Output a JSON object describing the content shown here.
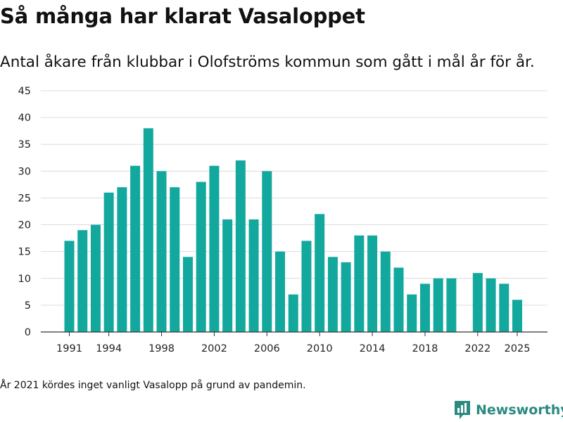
{
  "title": "Så många har klarat Vasaloppet",
  "subtitle": "Antal åkare från klubbar i Olofströms kommun som gått i mål år för år.",
  "note": "År 2021 kördes inget vanligt Vasalopp på grund av pandemin.",
  "brand": {
    "name": "Newsworthy",
    "icon": "newsworthy-logo-icon",
    "color": "#2a8a81"
  },
  "chart_data": {
    "type": "bar",
    "bar_color": "#13a89e",
    "grid": true,
    "xlabel": "",
    "ylabel": "",
    "ylim": [
      0,
      45
    ],
    "yticks": [
      0,
      5,
      10,
      15,
      20,
      25,
      30,
      35,
      40,
      45
    ],
    "xticks": [
      1991,
      1994,
      1998,
      2002,
      2006,
      2010,
      2014,
      2018,
      2022,
      2025
    ],
    "categories": [
      1991,
      1992,
      1993,
      1994,
      1995,
      1996,
      1997,
      1998,
      1999,
      2000,
      2001,
      2002,
      2003,
      2004,
      2005,
      2006,
      2007,
      2008,
      2009,
      2010,
      2011,
      2012,
      2013,
      2014,
      2015,
      2016,
      2017,
      2018,
      2019,
      2020,
      2021,
      2022,
      2023,
      2024,
      2025
    ],
    "values": [
      17,
      19,
      20,
      26,
      27,
      31,
      38,
      30,
      27,
      14,
      28,
      31,
      21,
      32,
      21,
      30,
      15,
      7,
      17,
      22,
      14,
      13,
      18,
      18,
      15,
      12,
      7,
      9,
      10,
      10,
      null,
      11,
      10,
      9,
      6
    ]
  }
}
